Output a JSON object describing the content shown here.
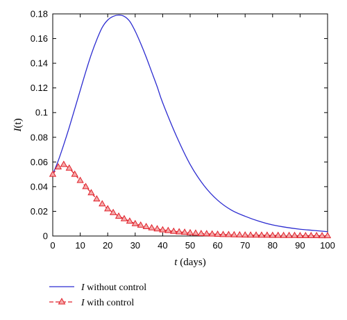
{
  "chart_data": {
    "type": "line",
    "xlabel_var": "t",
    "xlabel_unit": " (days)",
    "ylabel_var": "I",
    "ylabel_arg": "(t)",
    "xlim": [
      0,
      100
    ],
    "ylim": [
      0,
      0.18
    ],
    "xticks": [
      0,
      10,
      20,
      30,
      40,
      50,
      60,
      70,
      80,
      90,
      100
    ],
    "yticks": [
      0,
      0.02,
      0.04,
      0.06,
      0.08,
      0.1,
      0.12,
      0.14,
      0.16,
      0.18
    ],
    "grid": false,
    "legend_position": "bottom-left-outside",
    "series": [
      {
        "name_var": "I",
        "name": " without control",
        "color": "#2b2bd0",
        "marker": "none",
        "x": [
          0,
          2,
          4,
          6,
          8,
          10,
          12,
          14,
          16,
          18,
          20,
          22,
          24,
          26,
          28,
          30,
          32,
          34,
          36,
          38,
          40,
          45,
          50,
          55,
          60,
          65,
          70,
          75,
          80,
          85,
          90,
          95,
          100
        ],
        "y": [
          0.05,
          0.061,
          0.074,
          0.088,
          0.103,
          0.118,
          0.133,
          0.147,
          0.159,
          0.169,
          0.175,
          0.178,
          0.179,
          0.178,
          0.174,
          0.166,
          0.156,
          0.145,
          0.133,
          0.121,
          0.108,
          0.081,
          0.058,
          0.041,
          0.029,
          0.021,
          0.016,
          0.012,
          0.009,
          0.007,
          0.0055,
          0.0045,
          0.0035
        ]
      },
      {
        "name_var": "I",
        "name": " with control",
        "color": "#e0202a",
        "marker": "triangle",
        "x": [
          0,
          2,
          4,
          6,
          8,
          10,
          12,
          14,
          16,
          18,
          20,
          22,
          24,
          26,
          28,
          30,
          32,
          34,
          36,
          38,
          40,
          42,
          44,
          46,
          48,
          50,
          52,
          54,
          56,
          58,
          60,
          62,
          64,
          66,
          68,
          70,
          72,
          74,
          76,
          78,
          80,
          82,
          84,
          86,
          88,
          90,
          92,
          94,
          96,
          98,
          100
        ],
        "y": [
          0.05,
          0.056,
          0.058,
          0.055,
          0.05,
          0.045,
          0.04,
          0.035,
          0.03,
          0.026,
          0.022,
          0.019,
          0.016,
          0.014,
          0.012,
          0.01,
          0.0088,
          0.0076,
          0.0066,
          0.0058,
          0.005,
          0.0044,
          0.0038,
          0.0034,
          0.003,
          0.0026,
          0.0023,
          0.002,
          0.0018,
          0.0016,
          0.0014,
          0.0012,
          0.0011,
          0.001,
          0.0009,
          0.0008,
          0.0007,
          0.0007,
          0.0006,
          0.0006,
          0.0005,
          0.0005,
          0.0004,
          0.0004,
          0.0004,
          0.0003,
          0.0003,
          0.0003,
          0.0003,
          0.0002,
          0.0002
        ]
      }
    ]
  }
}
